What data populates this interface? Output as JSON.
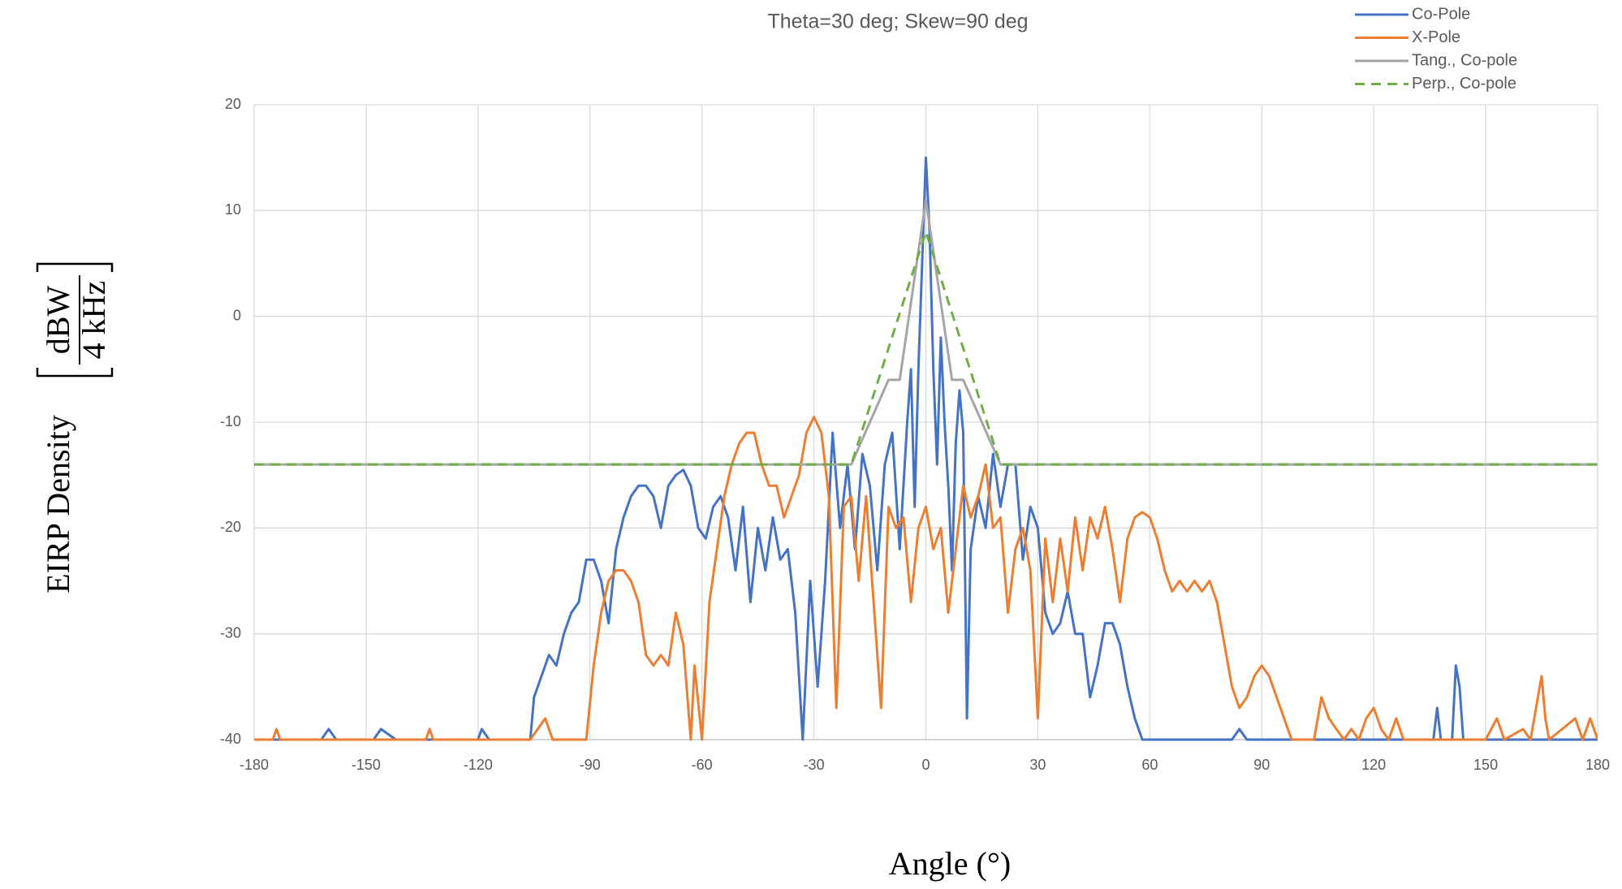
{
  "chart_data": {
    "type": "line",
    "title": "Theta=30 deg; Skew=90 deg",
    "x_label": "Angle (°)",
    "y_label": "EIRP Density",
    "y_unit_numerator": "dBW",
    "y_unit_denominator": "4 kHz",
    "xlim": [
      -180,
      180
    ],
    "xticks": [
      -180,
      -150,
      -120,
      -90,
      -60,
      -30,
      0,
      30,
      60,
      90,
      120,
      150,
      180
    ],
    "ylim": [
      -40,
      20
    ],
    "yticks": [
      -40,
      -30,
      -20,
      -10,
      0,
      10,
      20
    ],
    "grid": true,
    "legend": "top-right",
    "series": [
      {
        "name": "Co-Pole",
        "color": "#4472c4",
        "linestyle": "solid",
        "x": [
          -180,
          -162,
          -160,
          -158,
          -148,
          -146,
          -142,
          -134,
          -120,
          -119,
          -117,
          -106,
          -105,
          -103,
          -101,
          -99,
          -97,
          -95,
          -93,
          -91,
          -89,
          -87,
          -85,
          -83,
          -81,
          -79,
          -77,
          -75,
          -73,
          -71,
          -69,
          -67,
          -65,
          -63,
          -61,
          -59,
          -57,
          -55,
          -53,
          -51,
          -49,
          -47,
          -45,
          -43,
          -41,
          -39,
          -37,
          -35,
          -33,
          -31,
          -29,
          -27,
          -25,
          -23,
          -21,
          -19,
          -17,
          -15,
          -13,
          -11,
          -9,
          -7,
          -5,
          -4,
          -3,
          -2,
          -1,
          0,
          1,
          2,
          3,
          4,
          5,
          6,
          7,
          8,
          9,
          10,
          11,
          12,
          14,
          16,
          18,
          20,
          22,
          24,
          26,
          28,
          30,
          32,
          34,
          36,
          38,
          40,
          42,
          44,
          46,
          48,
          50,
          52,
          54,
          56,
          58,
          82,
          84,
          86,
          136,
          137,
          138,
          141,
          142,
          143,
          144,
          180
        ],
        "values": [
          -40,
          -40,
          -39,
          -40,
          -40,
          -39,
          -40,
          -40,
          -40,
          -39,
          -40,
          -40,
          -36,
          -34,
          -32,
          -33,
          -30,
          -28,
          -27,
          -23,
          -23,
          -25,
          -29,
          -22,
          -19,
          -17,
          -16,
          -16,
          -17,
          -20,
          -16,
          -15,
          -14.5,
          -16,
          -20,
          -21,
          -18,
          -17,
          -19,
          -24,
          -18,
          -27,
          -20,
          -24,
          -19,
          -23,
          -22,
          -28,
          -40,
          -25,
          -35,
          -25,
          -11,
          -20,
          -14,
          -22,
          -13,
          -16,
          -24,
          -14,
          -11,
          -22,
          -10,
          -5,
          -18,
          -5,
          5,
          15,
          8,
          -5,
          -14,
          -2,
          -10,
          -16,
          -24,
          -12,
          -7,
          -11,
          -38,
          -22,
          -17,
          -20,
          -13,
          -18,
          -14,
          -14,
          -23,
          -18,
          -20,
          -28,
          -30,
          -29,
          -26,
          -30,
          -30,
          -36,
          -33,
          -29,
          -29,
          -31,
          -35,
          -38,
          -40,
          -40,
          -39,
          -40,
          -40,
          -37,
          -40,
          -40,
          -33,
          -35,
          -40,
          -40
        ]
      },
      {
        "name": "X-Pole",
        "color": "#ed7d31",
        "linestyle": "solid",
        "x": [
          -180,
          -175,
          -174,
          -173,
          -134,
          -133,
          -132,
          -106,
          -104,
          -102,
          -100,
          -98,
          -91,
          -89,
          -87,
          -85,
          -83,
          -81,
          -79,
          -77,
          -75,
          -73,
          -71,
          -69,
          -67,
          -65,
          -63,
          -62,
          -60,
          -58,
          -56,
          -54,
          -52,
          -50,
          -48,
          -46,
          -44,
          -42,
          -40,
          -38,
          -36,
          -34,
          -32,
          -30,
          -28,
          -26,
          -24,
          -22,
          -20,
          -18,
          -16,
          -14,
          -12,
          -10,
          -8,
          -6,
          -4,
          -2,
          0,
          2,
          4,
          6,
          8,
          10,
          12,
          14,
          16,
          18,
          20,
          22,
          24,
          26,
          28,
          30,
          32,
          34,
          36,
          38,
          40,
          42,
          44,
          46,
          48,
          50,
          52,
          54,
          56,
          58,
          60,
          62,
          64,
          66,
          68,
          70,
          72,
          74,
          76,
          78,
          80,
          82,
          84,
          86,
          88,
          90,
          92,
          94,
          96,
          98,
          104,
          106,
          108,
          110,
          112,
          114,
          116,
          118,
          120,
          122,
          124,
          126,
          128,
          150,
          153,
          155,
          160,
          162,
          165,
          166,
          167,
          174,
          176,
          178,
          180
        ],
        "values": [
          -40,
          -40,
          -39,
          -40,
          -40,
          -39,
          -40,
          -40,
          -39,
          -38,
          -40,
          -40,
          -40,
          -33,
          -28,
          -25,
          -24,
          -24,
          -25,
          -27,
          -32,
          -33,
          -32,
          -33,
          -28,
          -31,
          -40,
          -33,
          -40,
          -27,
          -22,
          -17,
          -14,
          -12,
          -11,
          -11,
          -14,
          -16,
          -16,
          -19,
          -17,
          -15,
          -11,
          -9.5,
          -11,
          -17,
          -37,
          -18,
          -17,
          -25,
          -17,
          -27,
          -37,
          -18,
          -20,
          -19,
          -27,
          -20,
          -18,
          -22,
          -20,
          -28,
          -22,
          -16,
          -19,
          -17,
          -14,
          -20,
          -19,
          -28,
          -22,
          -20,
          -24,
          -38,
          -21,
          -27,
          -21,
          -26,
          -19,
          -24,
          -19,
          -21,
          -18,
          -22,
          -27,
          -21,
          -19,
          -18.5,
          -19,
          -21,
          -24,
          -26,
          -25,
          -26,
          -25,
          -26,
          -25,
          -27,
          -31,
          -35,
          -37,
          -36,
          -34,
          -33,
          -34,
          -36,
          -38,
          -40,
          -40,
          -36,
          -38,
          -39,
          -40,
          -39,
          -40,
          -38,
          -37,
          -39,
          -40,
          -38,
          -40,
          -40,
          -38,
          -40,
          -39,
          -40,
          -34,
          -38,
          -40,
          -38,
          -40,
          -38,
          -40
        ]
      },
      {
        "name": "Tang., Co-pole",
        "color": "#a5a5a5",
        "linestyle": "solid",
        "x": [
          -180,
          -20,
          -10,
          -7,
          0,
          7,
          10,
          20,
          180
        ],
        "values": [
          -14,
          -14,
          -6,
          -6,
          11,
          -6,
          -6,
          -14,
          -14
        ]
      },
      {
        "name": "Perp., Co-pole",
        "color": "#70ad47",
        "linestyle": "dashed",
        "x": [
          -180,
          -20,
          0,
          20,
          180
        ],
        "values": [
          -14,
          -14,
          8,
          -14,
          -14
        ]
      }
    ]
  }
}
